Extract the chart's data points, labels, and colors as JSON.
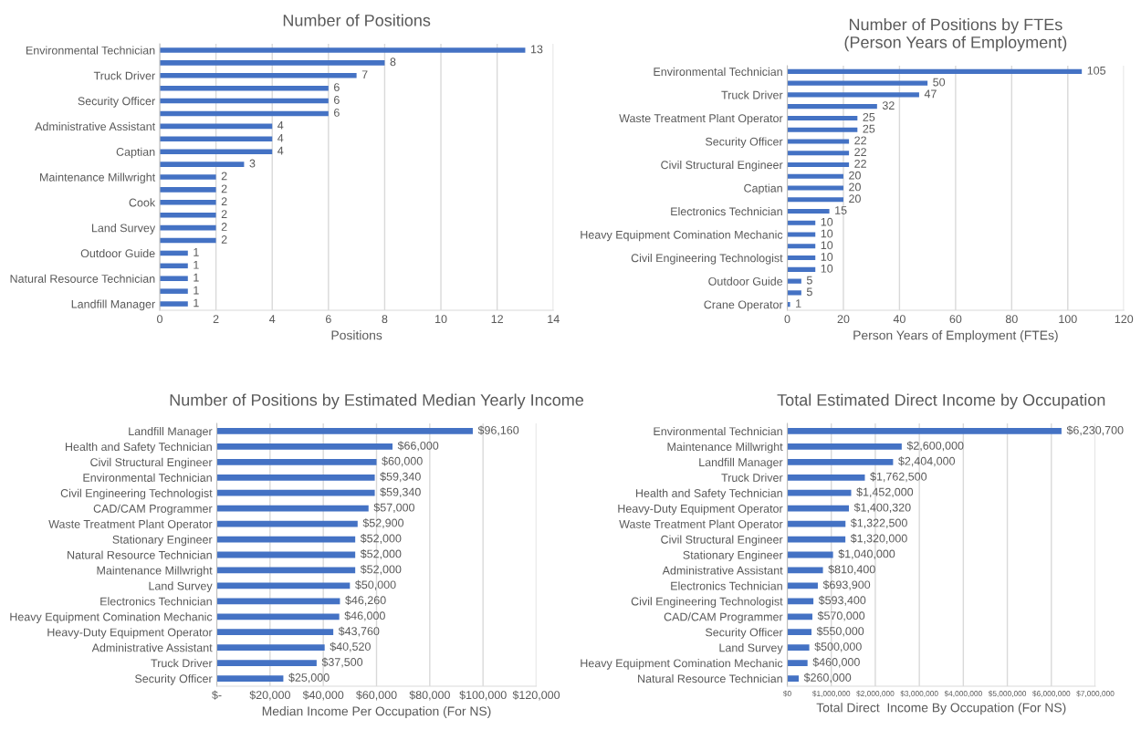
{
  "chart_data": [
    {
      "type": "bar",
      "orientation": "horizontal",
      "title": "Number of Positions",
      "xlabel": "Positions",
      "categories": [
        "Environmental Technician",
        null,
        "Truck Driver",
        null,
        "Security Officer",
        null,
        "Administrative Assistant",
        null,
        "Captian",
        null,
        "Maintenance Millwright",
        null,
        "Cook",
        null,
        "Land Survey",
        null,
        "Outdoor Guide",
        null,
        "Natural Resource Technician",
        null,
        "Landfill Manager"
      ],
      "values": [
        13,
        8,
        7,
        6,
        6,
        6,
        4,
        4,
        4,
        3,
        2,
        2,
        2,
        2,
        2,
        2,
        1,
        1,
        1,
        1,
        1
      ],
      "color": "#4472c4",
      "data_labels": true,
      "xlim": [
        0,
        14
      ],
      "xticks": [
        0,
        2,
        4,
        6,
        8,
        10,
        12,
        14
      ],
      "grid": "x"
    },
    {
      "type": "bar",
      "orientation": "horizontal",
      "title": "Number of Positions by FTEs\n(Person Years of Employment)",
      "xlabel": "Person Years of Employment (FTEs)",
      "categories": [
        "Environmental Technician",
        null,
        "Truck Driver",
        null,
        "Waste Treatment Plant Operator",
        null,
        "Security Officer",
        null,
        "Civil Structural Engineer",
        null,
        "Captian",
        null,
        "Electronics Technician",
        null,
        "Heavy Equipment Comination Mechanic",
        null,
        "Civil Engineering Technologist",
        null,
        "Outdoor Guide",
        null,
        "Crane Operator"
      ],
      "values": [
        105,
        50,
        47,
        32,
        25,
        25,
        22,
        22,
        22,
        20,
        20,
        20,
        15,
        10,
        10,
        10,
        10,
        10,
        5,
        5,
        1
      ],
      "color": "#4472c4",
      "data_labels": true,
      "xlim": [
        0,
        120
      ],
      "xticks": [
        0,
        20,
        40,
        60,
        80,
        100,
        120
      ],
      "grid": "x"
    },
    {
      "type": "bar",
      "orientation": "horizontal",
      "title": "Number of Positions by Estimated Median Yearly Income",
      "xlabel": "Median Income Per Occupation (For NS)",
      "categories": [
        "Landfill Manager",
        "Health and Safety Technician",
        "Civil Structural Engineer",
        "Environmental Technician",
        "Civil Engineering Technologist",
        "CAD/CAM Programmer",
        "Waste Treatment Plant Operator",
        "Stationary Engineer",
        "Natural Resource Technician",
        "Maintenance Millwright",
        "Land Survey",
        "Electronics Technician",
        "Heavy Equipment Comination Mechanic",
        "Heavy-Duty Equipment Operator",
        "Administrative Assistant",
        "Truck Driver",
        "Security Officer"
      ],
      "values": [
        96160,
        66000,
        60000,
        59340,
        59340,
        57000,
        52900,
        52000,
        52000,
        52000,
        50000,
        46260,
        46000,
        43760,
        40520,
        37500,
        25000
      ],
      "value_labels": [
        "$96,160",
        "$66,000",
        "$60,000",
        "$59,340",
        "$59,340",
        "$57,000",
        "$52,900",
        "$52,000",
        "$52,000",
        "$52,000",
        "$50,000",
        "$46,260",
        "$46,000",
        "$43,760",
        "$40,520",
        "$37,500",
        "$25,000"
      ],
      "color": "#4472c4",
      "xlim": [
        0,
        120000
      ],
      "xticks": [
        {
          "value": 0,
          "label": "$-"
        },
        {
          "value": 20000,
          "label": "$20,000"
        },
        {
          "value": 40000,
          "label": "$40,000"
        },
        {
          "value": 60000,
          "label": "$60,000"
        },
        {
          "value": 80000,
          "label": "$80,000"
        },
        {
          "value": 100000,
          "label": "$100,000"
        },
        {
          "value": 120000,
          "label": "$120,000"
        }
      ],
      "grid": "x"
    },
    {
      "type": "bar",
      "orientation": "horizontal",
      "title": "Total Estimated Direct Income by Occupation",
      "xlabel": "Total Direct  Income By Occupation (For NS)",
      "categories": [
        "Environmental Technician",
        "Maintenance Millwright",
        "Landfill Manager",
        "Truck Driver",
        "Health and Safety Technician",
        "Heavy-Duty Equipment Operator",
        "Waste Treatment Plant Operator",
        "Civil Structural Engineer",
        "Stationary Engineer",
        "Administrative Assistant",
        "Electronics Technician",
        "Civil Engineering Technologist",
        "CAD/CAM Programmer",
        "Security Officer",
        "Land Survey",
        "Heavy Equipment Comination Mechanic",
        "Natural Resource Technician"
      ],
      "values": [
        6230700,
        2600000,
        2404000,
        1762500,
        1452000,
        1400320,
        1322500,
        1320000,
        1040000,
        810400,
        693900,
        593400,
        570000,
        550000,
        500000,
        460000,
        260000
      ],
      "value_labels": [
        "$6,230,700",
        "$2,600,000",
        "$2,404,000",
        "$1,762,500",
        "$1,452,000",
        "$1,400,320",
        "$1,322,500",
        "$1,320,000",
        "$1,040,000",
        "$810,400",
        "$693,900",
        "$593,400",
        "$570,000",
        "$550,000",
        "$500,000",
        "$460,000",
        "$260,000"
      ],
      "color": "#4472c4",
      "xlim": [
        0,
        7000000
      ],
      "xticks": [
        {
          "value": 0,
          "label": "$0"
        },
        {
          "value": 1000000,
          "label": "$1,000,000"
        },
        {
          "value": 2000000,
          "label": "$2,000,000"
        },
        {
          "value": 3000000,
          "label": "$3,000,000"
        },
        {
          "value": 4000000,
          "label": "$4,000,000"
        },
        {
          "value": 5000000,
          "label": "$5,000,000"
        },
        {
          "value": 6000000,
          "label": "$6,000,000"
        },
        {
          "value": 7000000,
          "label": "$7,000,000"
        }
      ],
      "grid": "x"
    }
  ]
}
